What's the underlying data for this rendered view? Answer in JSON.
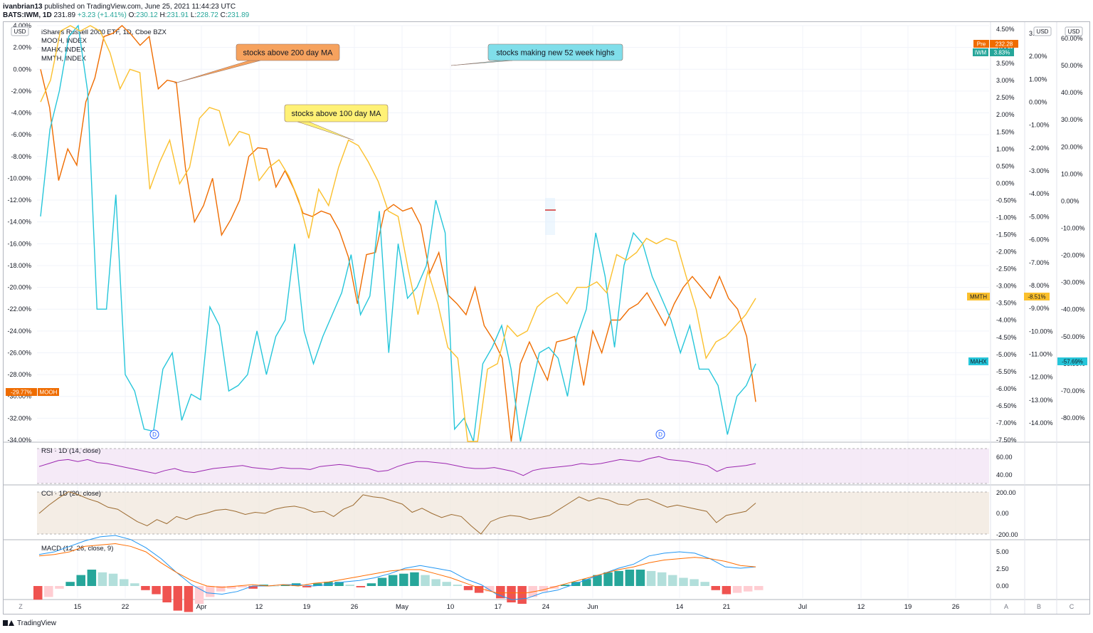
{
  "header": {
    "user": "ivanbrian13",
    "published": " published on TradingView.com, June 25, 2021 11:44:23 UTC",
    "symbol": "BATS:IWM, 1D",
    "last": "231.89",
    "change": "+3.23 (+1.41%)",
    "o_label": "O:",
    "o": "230.12",
    "h_label": "H:",
    "h": "231.91",
    "l_label": "L:",
    "l": "228.72",
    "c_label": "C:",
    "c": "231.89"
  },
  "legend": {
    "main": "iShares Russell 2000 ETF, 1D, Cboe BZX",
    "items": [
      "MOOH, INDEX",
      "MAHX, INDEX",
      "MMTH, INDEX"
    ]
  },
  "currency_label": "USD",
  "colors": {
    "mooh": "#ef6c00",
    "mahx": "#26c6da",
    "mmth": "#fbc02d",
    "up": "#26a69a",
    "down": "#ef5350",
    "rsi": "#9c27b0",
    "cci": "#9c6b30",
    "macd": "#2196f3",
    "signal": "#ff6d00"
  },
  "annotations": [
    {
      "text": "stocks above 200 day MA",
      "color": "#f6a25e"
    },
    {
      "text": "stocks making new 52 week highs",
      "color": "#80deea"
    },
    {
      "text": "stocks above 100 day MA",
      "color": "#fff176"
    }
  ],
  "price_badges": {
    "pre": "Pre",
    "pre_value": "232.28",
    "iwm": "IWM",
    "iwm_value": "3.83%",
    "mmth": "MMTH",
    "mmth_value": "-8.51%",
    "mahx": "MAHX",
    "mahx_value": "-57.69%",
    "mooh": "MOOH",
    "mooh_value": "-29.77%"
  },
  "dividend_marker": "D",
  "footer_brand": "TradingView",
  "corner_buttons": [
    "Z",
    "A",
    "B",
    "C"
  ],
  "chart_data": {
    "type": "line",
    "x_ticks": [
      "15",
      "22",
      "Apr",
      "12",
      "19",
      "26",
      "May",
      "10",
      "17",
      "24",
      "Jun",
      "14",
      "21",
      "Jul",
      "12",
      "19",
      "26"
    ],
    "axis_left": [
      "4.00%",
      "2.00%",
      "0.00%",
      "-2.00%",
      "-4.00%",
      "-6.00%",
      "-8.00%",
      "-10.00%",
      "-12.00%",
      "-14.00%",
      "-16.00%",
      "-18.00%",
      "-20.00%",
      "-22.00%",
      "-24.00%",
      "-26.00%",
      "-28.00%",
      "-30.00%",
      "-32.00%",
      "-34.00%"
    ],
    "axis_r1": [
      "4.50%",
      "4.00%",
      "3.50%",
      "3.00%",
      "2.50%",
      "2.00%",
      "1.50%",
      "1.00%",
      "0.50%",
      "0.00%",
      "-0.50%",
      "-1.00%",
      "-1.50%",
      "-2.00%",
      "-2.50%",
      "-3.00%",
      "-3.50%",
      "-4.00%",
      "-4.50%",
      "-5.00%",
      "-5.50%",
      "-6.00%",
      "-6.50%",
      "-7.00%",
      "-7.50%"
    ],
    "axis_r2": [
      "3.00%",
      "2.00%",
      "1.00%",
      "0.00%",
      "-1.00%",
      "-2.00%",
      "-3.00%",
      "-4.00%",
      "-5.00%",
      "-6.00%",
      "-7.00%",
      "-8.00%",
      "-9.00%",
      "-10.00%",
      "-11.00%",
      "-12.00%",
      "-13.00%",
      "-14.00%"
    ],
    "axis_r3": [
      "60.00%",
      "50.00%",
      "40.00%",
      "30.00%",
      "20.00%",
      "10.00%",
      "0.00%",
      "-10.00%",
      "-20.00%",
      "-30.00%",
      "-40.00%",
      "-50.00%",
      "-60.00%",
      "-70.00%",
      "-80.00%"
    ],
    "series": [
      {
        "name": "MOOH",
        "values": [
          0.0,
          -3.5,
          -10.2,
          -7.3,
          -8.8,
          -3.0,
          -0.8,
          3.0,
          3.3,
          4.2,
          3.2,
          2.2,
          3.0,
          -1.8,
          -1.0,
          -1.2,
          -9.0,
          -14.0,
          -12.5,
          -10.0,
          -15.2,
          -13.8,
          -12.0,
          -8.0,
          -7.2,
          -7.3,
          -10.8,
          -9.3,
          -11.0,
          -13.2,
          -13.5,
          -13.0,
          -13.3,
          -14.8,
          -17.2,
          -21.5,
          -17.0,
          -16.8,
          -13.0,
          -12.4,
          -13.0,
          -12.7,
          -14.3,
          -18.7,
          -16.8,
          -20.7,
          -21.5,
          -22.5,
          -20.0,
          -23.5,
          -24.8,
          -26.5,
          -34.5,
          -27.0,
          -25.0,
          -26.8,
          -28.5,
          -25.0,
          -24.8,
          -24.5,
          -29.0,
          -24.0,
          -26.0,
          -23.0,
          -23.0,
          -22.0,
          -21.5,
          -20.5,
          -22.0,
          -23.5,
          -21.5,
          -20.0,
          -19.0,
          -20.0,
          -21.0,
          -19.0,
          -21.0,
          -22.0,
          -24.5,
          -30.5
        ]
      },
      {
        "name": "MAHX",
        "values": [
          -13.5,
          -5.5,
          -2.0,
          3.0,
          6.5,
          -2.0,
          -22.0,
          -22.0,
          -11.5,
          -28.0,
          -29.5,
          -33.0,
          -33.2,
          -27.5,
          -26.0,
          -32.2,
          -29.8,
          -30.3,
          -21.8,
          -23.5,
          -29.5,
          -29.0,
          -28.0,
          -24.0,
          -28.0,
          -24.5,
          -23.0,
          -16.0,
          -24.0,
          -27.0,
          -24.5,
          -22.5,
          -20.5,
          -17.0,
          -22.5,
          -20.8,
          -13.0,
          -26.0,
          -16.0,
          -21.0,
          -20.0,
          -18.0,
          -12.0,
          -15.0,
          -33.0,
          -32.0,
          -34.5,
          -27.0,
          -25.5,
          -23.5,
          -27.5,
          -34.5,
          -30.0,
          -26.0,
          -25.5,
          -26.5,
          -30.0,
          -24.5,
          -22.0,
          -15.0,
          -19.0,
          -25.5,
          -18.0,
          -15.0,
          -16.0,
          -19.0,
          -21.0,
          -23.0,
          -26.0,
          -23.5,
          -27.5,
          -27.5,
          -29.0,
          -33.5,
          -30.0,
          -29.0,
          -27.0
        ]
      },
      {
        "name": "MMTH",
        "values": [
          -3.0,
          -1.0,
          3.5,
          5.0,
          3.5,
          5.5,
          3.5,
          1.5,
          -1.8,
          0.0,
          -0.3,
          -11.0,
          -8.5,
          -6.5,
          -10.5,
          -9.0,
          -4.5,
          -3.5,
          -3.8,
          -7.0,
          -5.7,
          -6.0,
          -10.2,
          -9.0,
          -8.3,
          -9.8,
          -12.0,
          -15.5,
          -11.0,
          -12.5,
          -9.0,
          -6.5,
          -7.0,
          -8.5,
          -10.3,
          -13.0,
          -13.5,
          -18.3,
          -22.5,
          -18.5,
          -21.5,
          -25.5,
          -26.5,
          -34.5,
          -34.5,
          -27.5,
          -27.0,
          -23.5,
          -24.5,
          -24.0,
          -21.8,
          -21.0,
          -20.5,
          -21.5,
          -20.0,
          -20.0,
          -19.5,
          -20.5,
          -17.0,
          -17.5,
          -16.8,
          -15.5,
          -16.0,
          -15.5,
          -15.8,
          -19.0,
          -22.0,
          -26.5,
          -25.0,
          -24.5,
          -23.5,
          -22.5,
          -21.0
        ]
      }
    ],
    "rsi": {
      "label": "RSI · 1D (14, close)",
      "ticks": [
        "60.00",
        "40.00"
      ]
    },
    "cci": {
      "label": "CCI · 1D (20, close)",
      "ticks": [
        "200.00",
        "0.00",
        "-200.00"
      ]
    },
    "macd": {
      "label": "MACD (12, 26, close, 9)",
      "ticks": [
        "5.00",
        "2.50",
        "0.00"
      ]
    }
  }
}
